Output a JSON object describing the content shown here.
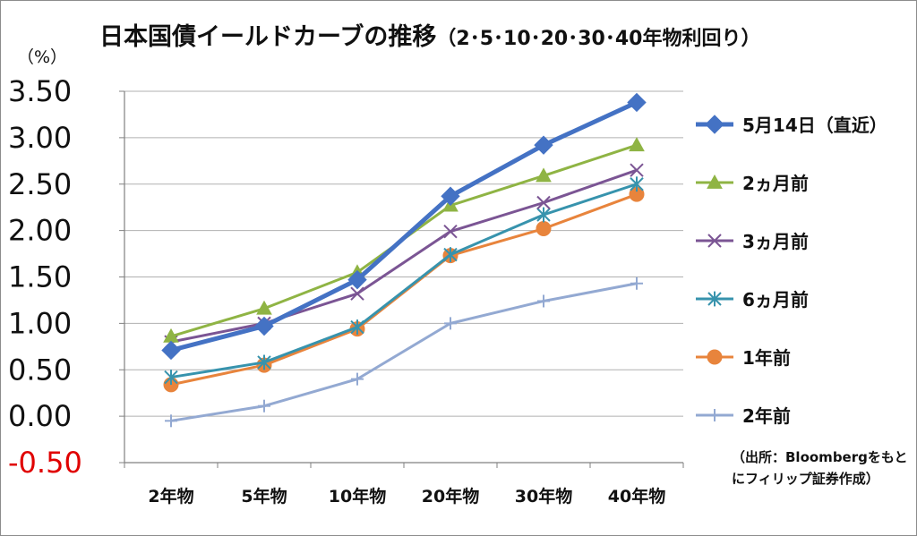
{
  "title_main": "日本国債イールドカーブの推移",
  "title_paren": "（2･5･10･20･30･40年物利回り）",
  "unit": "（%）",
  "source": "（出所：Bloombergをもとにフィリップ証券作成）",
  "colors": {
    "latest": "#4472c4",
    "m2": "#8fb444",
    "m3": "#7b5594",
    "m6": "#3793ad",
    "y1": "#e8843c",
    "y2": "#93a9d2",
    "negative_tick": "#e00000",
    "grid": "#b0b0b0"
  },
  "chart_data": {
    "type": "line",
    "title": "日本国債イールドカーブの推移（2･5･10･20･30･40年物利回り）",
    "ylabel": "（%）",
    "xlabel": "",
    "categories": [
      "2年物",
      "5年物",
      "10年物",
      "20年物",
      "30年物",
      "40年物"
    ],
    "ylim": [
      -0.5,
      3.5
    ],
    "ytick_labels": [
      "3.50",
      "3.00",
      "2.50",
      "2.00",
      "1.50",
      "1.00",
      "0.50",
      "0.00",
      "-0.50"
    ],
    "ytick_values": [
      3.5,
      3.0,
      2.5,
      2.0,
      1.5,
      1.0,
      0.5,
      0.0,
      -0.5
    ],
    "grid": true,
    "legend_position": "right",
    "series": [
      {
        "name": "5月14日（直近）",
        "values": [
          0.71,
          0.97,
          1.47,
          2.37,
          2.92,
          3.38
        ],
        "marker": "diamond",
        "color": "#4472c4",
        "width": 5
      },
      {
        "name": "2ヵ月前",
        "values": [
          0.86,
          1.16,
          1.55,
          2.27,
          2.59,
          2.92
        ],
        "marker": "triangle",
        "color": "#8fb444",
        "width": 3
      },
      {
        "name": "3ヵ月前",
        "values": [
          0.8,
          1.0,
          1.32,
          1.99,
          2.3,
          2.65
        ],
        "marker": "x",
        "color": "#7b5594",
        "width": 3
      },
      {
        "name": "6ヵ月前",
        "values": [
          0.42,
          0.58,
          0.96,
          1.74,
          2.17,
          2.5
        ],
        "marker": "asterisk",
        "color": "#3793ad",
        "width": 3
      },
      {
        "name": "1年前",
        "values": [
          0.34,
          0.55,
          0.94,
          1.73,
          2.02,
          2.39
        ],
        "marker": "circle",
        "color": "#e8843c",
        "width": 3
      },
      {
        "name": "2年前",
        "values": [
          -0.05,
          0.11,
          0.4,
          1.0,
          1.24,
          1.43
        ],
        "marker": "plus",
        "color": "#93a9d2",
        "width": 3
      }
    ]
  }
}
